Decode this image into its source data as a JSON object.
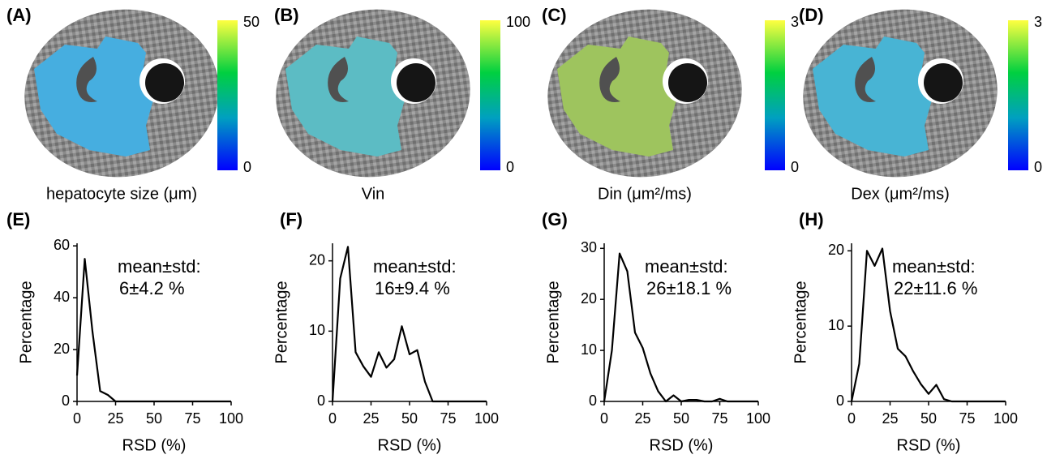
{
  "maps": [
    {
      "panel": "(A)",
      "label": "hepatocyte size (μm)",
      "colorbar_ticks": [
        50,
        0
      ],
      "color": "#46aee0"
    },
    {
      "panel": "(B)",
      "label": "Vin",
      "colorbar_ticks": [
        100,
        0
      ],
      "color": "#5cbcc4"
    },
    {
      "panel": "(C)",
      "label": "Din (μm²/ms)",
      "colorbar_ticks": [
        3,
        0
      ],
      "color": "#9ec45e"
    },
    {
      "panel": "(D)",
      "label": "Dex (μm²/ms)",
      "colorbar_ticks": [
        3,
        0
      ],
      "color": "#48b4d4"
    }
  ],
  "chart_data": [
    {
      "type": "line",
      "panel": "(E)",
      "annotation": [
        "mean±std:",
        "6±4.2 %"
      ],
      "xlabel": "RSD (%)",
      "ylabel": "Percentage",
      "color": "#000000",
      "x": [
        0,
        5,
        10,
        15,
        20,
        25,
        30,
        35,
        40,
        45,
        50,
        55,
        60,
        65,
        70,
        75,
        80,
        85,
        90,
        95,
        100
      ],
      "values": [
        10,
        55,
        27,
        4,
        2.5,
        0,
        0,
        0,
        0,
        0,
        0,
        0,
        0,
        0,
        0,
        0,
        0,
        0,
        0,
        0,
        0
      ],
      "xlim": [
        0,
        100
      ],
      "xticks": [
        0,
        25,
        50,
        75,
        100
      ],
      "ylim": [
        0,
        61
      ],
      "yticks": [
        0,
        20,
        40,
        60
      ]
    },
    {
      "type": "line",
      "panel": "(F)",
      "annotation": [
        "mean±std:",
        "16±9.4 %"
      ],
      "xlabel": "RSD (%)",
      "ylabel": "Percentage",
      "color": "#000000",
      "x": [
        0,
        5,
        10,
        15,
        20,
        25,
        30,
        35,
        40,
        45,
        50,
        55,
        60,
        65,
        70,
        75,
        80,
        85,
        90,
        95,
        100
      ],
      "values": [
        0,
        17.5,
        22,
        7,
        5,
        3.5,
        7,
        4.8,
        6,
        10.7,
        6.7,
        7.3,
        2.8,
        0,
        0,
        0,
        0,
        0,
        0,
        0,
        0
      ],
      "xlim": [
        0,
        100
      ],
      "xticks": [
        0,
        25,
        50,
        75,
        100
      ],
      "ylim": [
        0,
        22.5
      ],
      "yticks": [
        0,
        10,
        20
      ]
    },
    {
      "type": "line",
      "panel": "(G)",
      "annotation": [
        "mean±std:",
        "26±18.1 %"
      ],
      "xlabel": "RSD (%)",
      "ylabel": "Percentage",
      "color": "#000000",
      "x": [
        0,
        5,
        10,
        15,
        20,
        25,
        30,
        35,
        40,
        45,
        50,
        55,
        60,
        65,
        70,
        75,
        80,
        85,
        90,
        95,
        100
      ],
      "values": [
        0,
        10,
        29,
        25.5,
        13.5,
        10.5,
        5.5,
        2,
        0,
        1.2,
        0,
        0.3,
        0.3,
        0,
        0,
        0.5,
        0,
        0,
        0,
        0,
        0
      ],
      "xlim": [
        0,
        100
      ],
      "xticks": [
        0,
        25,
        50,
        75,
        100
      ],
      "ylim": [
        0,
        31
      ],
      "yticks": [
        0,
        10,
        20,
        30
      ]
    },
    {
      "type": "line",
      "panel": "(H)",
      "annotation": [
        "mean±std:",
        "22±11.6 %"
      ],
      "xlabel": "RSD (%)",
      "ylabel": "Percentage",
      "color": "#000000",
      "x": [
        0,
        5,
        10,
        15,
        20,
        25,
        30,
        35,
        40,
        45,
        50,
        55,
        60,
        65,
        70,
        75,
        80,
        85,
        90,
        95,
        100
      ],
      "values": [
        0,
        5,
        20,
        18,
        20.3,
        12,
        7,
        6,
        4,
        2.3,
        1,
        2.2,
        0.3,
        0,
        0,
        0,
        0,
        0,
        0,
        0,
        0
      ],
      "xlim": [
        0,
        100
      ],
      "xticks": [
        0,
        25,
        50,
        75,
        100
      ],
      "ylim": [
        0,
        21
      ],
      "yticks": [
        0,
        10,
        20
      ]
    }
  ]
}
